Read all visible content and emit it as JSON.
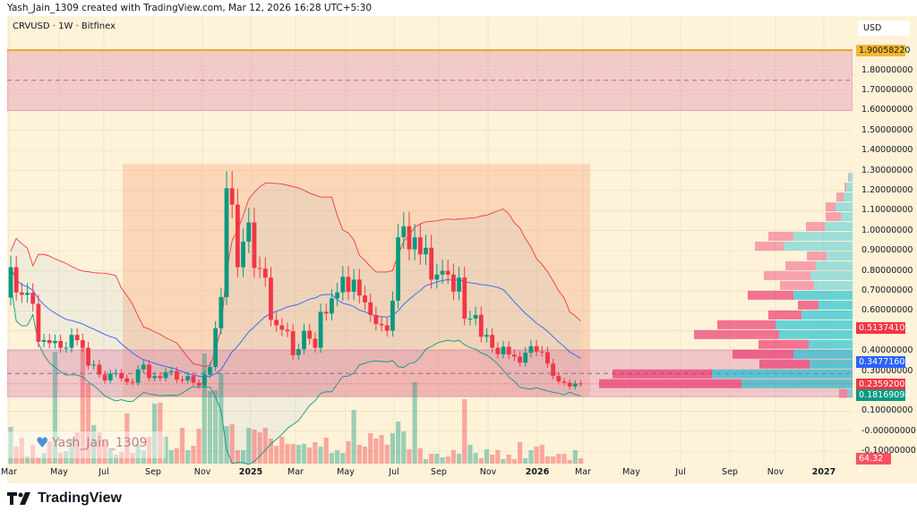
{
  "header": {
    "credit": "Yash_Jain_1309 created with TradingView.com, Mar 12, 2026 16:28 UTC+5:30"
  },
  "symbol_line": "CRVUSD · 1W · Bitfinex",
  "currency": "USD",
  "watermark": {
    "text": "Yash_Jain_1309",
    "icon": "blue-heart-icon"
  },
  "brand": {
    "name": "TradingView",
    "icon": "tradingview-logo-icon"
  },
  "colors": {
    "up": "#089981",
    "down": "#f23645",
    "bb_upper": "#f23645",
    "bb_basis": "#2962ff",
    "bb_lower": "#089981",
    "background": "#fef2d8",
    "last_line": "#f5a623"
  },
  "chart_data": {
    "type": "candlestick",
    "timeframe": "1W",
    "y_axis_ticks": [
      "1.80000000",
      "1.70000000",
      "1.60000000",
      "1.50000000",
      "1.40000000",
      "1.30000000",
      "1.20000000",
      "1.10000000",
      "1.00000000",
      "0.90000000",
      "0.80000000",
      "0.70000000",
      "0.60000000",
      "0.40000000",
      "0.30000000",
      "0.10000000",
      "-0.00000000",
      "-0.10000000"
    ],
    "y_axis_tick_values": [
      1.8,
      1.7,
      1.6,
      1.5,
      1.4,
      1.3,
      1.2,
      1.1,
      1.0,
      0.9,
      0.8,
      0.7,
      0.6,
      0.4,
      0.3,
      0.1,
      0.0,
      -0.1
    ],
    "x_axis_ticks": [
      "Mar",
      "May",
      "Jul",
      "Sep",
      "Nov",
      "2025",
      "Mar",
      "May",
      "Jul",
      "Sep",
      "Nov",
      "2026",
      "Mar",
      "May",
      "Jul",
      "Sep",
      "Nov",
      "2027"
    ],
    "ylim": [
      -0.12,
      2.0
    ],
    "first_open": 0.666,
    "close": [
      0.818,
      0.692,
      0.68,
      0.69,
      0.635,
      0.446,
      0.454,
      0.439,
      0.45,
      0.416,
      0.416,
      0.48,
      0.454,
      0.416,
      0.327,
      0.332,
      0.282,
      0.253,
      0.287,
      0.29,
      0.263,
      0.245,
      0.242,
      0.308,
      0.332,
      0.265,
      0.275,
      0.265,
      0.294,
      0.3,
      0.257,
      0.253,
      0.275,
      0.242,
      0.227,
      0.282,
      0.32,
      0.513,
      0.669,
      1.212,
      1.13,
      0.818,
      0.945,
      1.041,
      0.814,
      0.811,
      0.766,
      0.555,
      0.528,
      0.506,
      0.498,
      0.379,
      0.409,
      0.501,
      0.461,
      0.416,
      0.595,
      0.587,
      0.662,
      0.692,
      0.77,
      0.695,
      0.756,
      0.677,
      0.642,
      0.58,
      0.535,
      0.528,
      0.501,
      0.651,
      0.967,
      1.022,
      0.907,
      0.967,
      0.882,
      0.915,
      0.756,
      0.781,
      0.8,
      0.781,
      0.696,
      0.766,
      0.561,
      0.561,
      0.58,
      0.471,
      0.48,
      0.416,
      0.384,
      0.421,
      0.382,
      0.372,
      0.342,
      0.391,
      0.424,
      0.397,
      0.394,
      0.337,
      0.275,
      0.248,
      0.242,
      0.223,
      0.238,
      0.23592
    ],
    "volume_k": [
      439,
      203,
      310,
      86,
      225,
      75,
      128,
      268,
      1338,
      128,
      150,
      300,
      375,
      1391,
      963,
      460,
      375,
      268,
      161,
      107,
      139,
      599,
      128,
      235,
      161,
      321,
      717,
      728,
      321,
      161,
      182,
      428,
      161,
      214,
      417,
      1316,
      867,
      877,
      1081,
      449,
      471,
      161,
      161,
      428,
      407,
      375,
      428,
      300,
      214,
      321,
      235,
      235,
      225,
      235,
      193,
      257,
      203,
      310,
      128,
      161,
      128,
      268,
      642,
      225,
      203,
      364,
      300,
      342,
      225,
      364,
      503,
      385,
      171,
      974,
      182,
      54,
      118,
      118,
      75,
      86,
      161,
      118,
      770,
      225,
      128,
      64,
      171,
      107,
      161,
      54,
      107,
      54,
      257,
      64,
      161,
      203,
      225,
      86,
      86,
      118,
      118,
      43,
      161,
      64.32
    ],
    "indicator": "Bollinger Bands",
    "last_values": {
      "price_line": "1.90058220",
      "bb_upper": "0.51374106",
      "bb_basis": "0.34771600",
      "close": "0.23592000",
      "bb_lower": "0.18169094",
      "volume": "64.32 K"
    },
    "zones": {
      "upper_zone": [
        1.6,
        1.9006
      ],
      "upper_zone_mid": 1.75,
      "support_zone": [
        0.172,
        0.405
      ],
      "support_dashed": 0.288,
      "range_box": [
        0.172,
        1.333
      ]
    },
    "volume_profile": {
      "top_price": 1.288,
      "row_size": 0.049,
      "value_area_rows": [
        12,
        21
      ],
      "rows": [
        {
          "down": 1,
          "up": 4
        },
        {
          "down": 2,
          "up": 7
        },
        {
          "down": 8,
          "up": 10
        },
        {
          "down": 11,
          "up": 19
        },
        {
          "down": 17,
          "up": 13
        },
        {
          "down": 21,
          "up": 31
        },
        {
          "down": 28,
          "up": 66
        },
        {
          "down": 32,
          "up": 77
        },
        {
          "down": 22,
          "up": 29
        },
        {
          "down": 34,
          "up": 41
        },
        {
          "down": 52,
          "up": 47
        },
        {
          "down": 38,
          "up": 43
        },
        {
          "down": 51,
          "up": 66
        },
        {
          "down": 23,
          "up": 38
        },
        {
          "down": 37,
          "up": 57
        },
        {
          "down": 65,
          "up": 86
        },
        {
          "down": 95,
          "up": 82
        },
        {
          "down": 56,
          "up": 49
        },
        {
          "down": 68,
          "up": 66
        },
        {
          "down": 56,
          "up": 48
        },
        {
          "down": 111,
          "up": 157
        },
        {
          "down": 159,
          "up": 124
        },
        {
          "down": 9,
          "up": 6
        }
      ]
    }
  }
}
